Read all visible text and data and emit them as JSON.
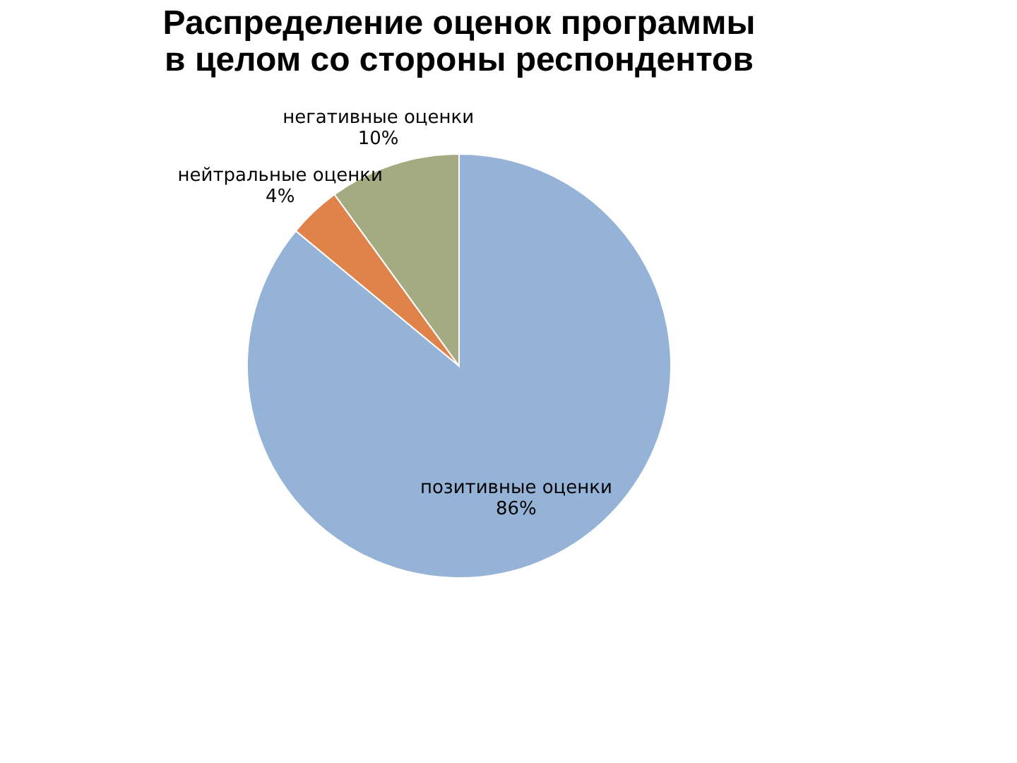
{
  "chart_data": {
    "type": "pie",
    "title": "Распределение оценок программы в целом со стороны респондентов",
    "categories": [
      "позитивные оценки",
      "нейтральные оценки",
      "негативные оценки"
    ],
    "values": [
      86,
      4,
      10
    ],
    "value_labels": [
      "86%",
      "4%",
      "10%"
    ],
    "colors": [
      "#95b3d7",
      "#e0834a",
      "#a5ab81"
    ],
    "legend": false
  }
}
